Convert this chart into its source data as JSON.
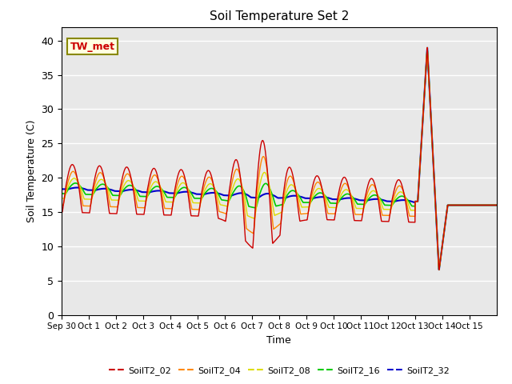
{
  "title": "Soil Temperature Set 2",
  "xlabel": "Time",
  "ylabel": "Soil Temperature (C)",
  "ylim": [
    0,
    42
  ],
  "xlim": [
    0,
    16
  ],
  "xtick_positions": [
    0,
    1,
    2,
    3,
    4,
    5,
    6,
    7,
    8,
    9,
    10,
    11,
    12,
    13,
    14,
    15
  ],
  "xtick_labels": [
    "Sep 30",
    "Oct 1",
    "Oct 2",
    "Oct 3",
    "Oct 4",
    "Oct 5",
    "Oct 6",
    "Oct 7",
    "Oct 8",
    "Oct 9",
    "Oct 10",
    "Oct 11",
    "Oct 12",
    "Oct 13",
    "Oct 14",
    "Oct 15"
  ],
  "line_colors": [
    "#cc0000",
    "#ff8800",
    "#dddd00",
    "#00cc00",
    "#0000cc"
  ],
  "line_names": [
    "SoilT2_02",
    "SoilT2_04",
    "SoilT2_08",
    "SoilT2_16",
    "SoilT2_32"
  ],
  "annotation_text": "TW_met",
  "bg_color": "#e8e8e8",
  "grid_color": "#ffffff"
}
